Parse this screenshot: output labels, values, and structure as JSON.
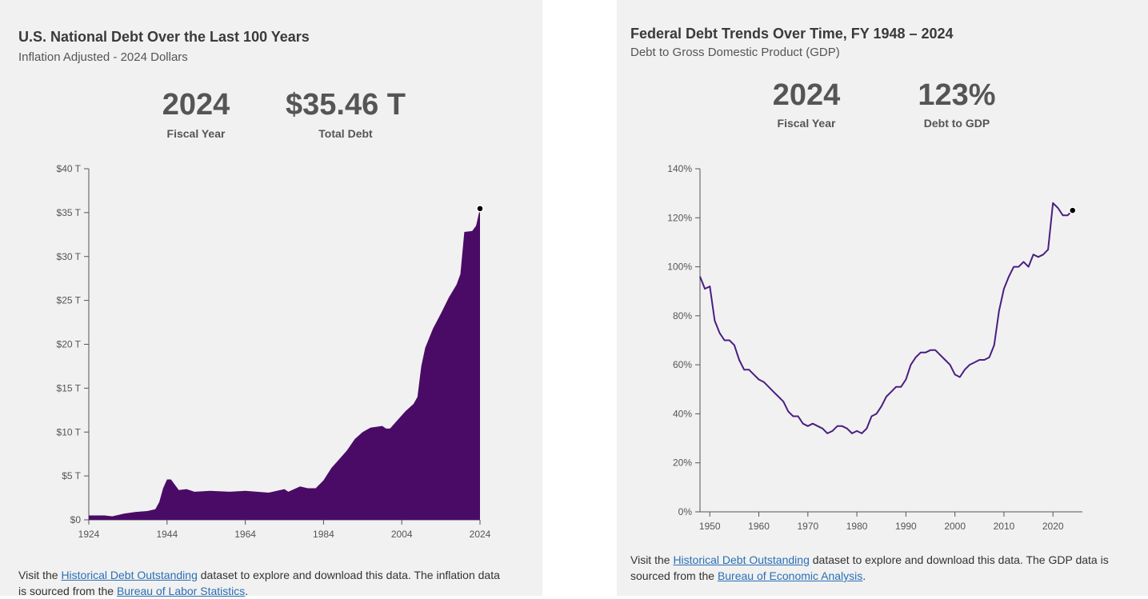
{
  "left": {
    "title": "U.S. National Debt Over the Last 100 Years",
    "subtitle": "Inflation Adjusted - 2024 Dollars",
    "stats": [
      {
        "value": "2024",
        "label": "Fiscal Year"
      },
      {
        "value": "$35.46 T",
        "label": "Total Debt"
      }
    ],
    "footnote": {
      "pre": "Visit the ",
      "link1": "Historical Debt Outstanding",
      "mid": " dataset to explore and download this data. The inflation data is sourced from the ",
      "link2": "Bureau of Labor Statistics",
      "post": "."
    }
  },
  "right": {
    "title": "Federal Debt Trends Over Time, FY 1948 – 2024",
    "subtitle": "Debt to Gross Domestic Product (GDP)",
    "stats": [
      {
        "value": "2024",
        "label": "Fiscal Year"
      },
      {
        "value": "123%",
        "label": "Debt to GDP"
      }
    ],
    "footnote": {
      "pre": "Visit the ",
      "link1": "Historical Debt Outstanding",
      "mid": " dataset to explore and download this data. The GDP data is sourced from the ",
      "link2": "Bureau of Economic Analysis",
      "post": "."
    }
  },
  "chart_data": [
    {
      "type": "area",
      "title": "U.S. National Debt Over the Last 100 Years",
      "subtitle": "Inflation Adjusted - 2024 Dollars",
      "color": "#4a0b66",
      "xlim": [
        1924,
        2024
      ],
      "ylim": [
        0,
        40
      ],
      "x_ticks": [
        "1924",
        "1944",
        "1964",
        "1984",
        "2004",
        "2024"
      ],
      "x_tick_values": [
        1924,
        1944,
        1964,
        1984,
        2004,
        2024
      ],
      "y_ticks": [
        "$0",
        "$5 T",
        "$10 T",
        "$15 T",
        "$20 T",
        "$25 T",
        "$30 T",
        "$35 T",
        "$40 T"
      ],
      "y_tick_values": [
        0,
        5,
        10,
        15,
        20,
        25,
        30,
        35,
        40
      ],
      "highlight": {
        "x": 2024,
        "y": 35.46
      },
      "points": [
        [
          1924,
          0.5
        ],
        [
          1928,
          0.5
        ],
        [
          1930,
          0.4
        ],
        [
          1933,
          0.7
        ],
        [
          1936,
          0.9
        ],
        [
          1939,
          1.0
        ],
        [
          1941,
          1.2
        ],
        [
          1942,
          2.0
        ],
        [
          1943,
          3.6
        ],
        [
          1944,
          4.6
        ],
        [
          1945,
          4.6
        ],
        [
          1946,
          4.0
        ],
        [
          1947,
          3.4
        ],
        [
          1949,
          3.5
        ],
        [
          1951,
          3.2
        ],
        [
          1955,
          3.3
        ],
        [
          1960,
          3.2
        ],
        [
          1964,
          3.3
        ],
        [
          1970,
          3.1
        ],
        [
          1974,
          3.5
        ],
        [
          1975,
          3.2
        ],
        [
          1978,
          3.8
        ],
        [
          1980,
          3.6
        ],
        [
          1982,
          3.6
        ],
        [
          1984,
          4.5
        ],
        [
          1986,
          5.9
        ],
        [
          1988,
          6.9
        ],
        [
          1990,
          7.9
        ],
        [
          1992,
          9.2
        ],
        [
          1994,
          10.0
        ],
        [
          1996,
          10.5
        ],
        [
          1999,
          10.7
        ],
        [
          2000,
          10.4
        ],
        [
          2001,
          10.4
        ],
        [
          2003,
          11.4
        ],
        [
          2005,
          12.4
        ],
        [
          2007,
          13.2
        ],
        [
          2008,
          14.0
        ],
        [
          2009,
          17.5
        ],
        [
          2010,
          19.6
        ],
        [
          2012,
          21.8
        ],
        [
          2014,
          23.5
        ],
        [
          2016,
          25.3
        ],
        [
          2018,
          26.8
        ],
        [
          2019,
          28.0
        ],
        [
          2020,
          32.8
        ],
        [
          2022,
          32.9
        ],
        [
          2023,
          33.5
        ],
        [
          2024,
          35.46
        ]
      ]
    },
    {
      "type": "line",
      "title": "Federal Debt Trends Over Time, FY 1948 – 2024",
      "subtitle": "Debt to Gross Domestic Product (GDP)",
      "color": "#4a1e82",
      "xlim": [
        1948,
        2026
      ],
      "ylim": [
        0,
        140
      ],
      "x_ticks": [
        "1950",
        "1960",
        "1970",
        "1980",
        "1990",
        "2000",
        "2010",
        "2020"
      ],
      "x_tick_values": [
        1950,
        1960,
        1970,
        1980,
        1990,
        2000,
        2010,
        2020
      ],
      "y_ticks": [
        "0%",
        "20%",
        "40%",
        "60%",
        "80%",
        "100%",
        "120%",
        "140%"
      ],
      "y_tick_values": [
        0,
        20,
        40,
        60,
        80,
        100,
        120,
        140
      ],
      "highlight": {
        "x": 2024,
        "y": 123
      },
      "points": [
        [
          1948,
          96
        ],
        [
          1949,
          91
        ],
        [
          1950,
          92
        ],
        [
          1951,
          78
        ],
        [
          1952,
          73
        ],
        [
          1953,
          70
        ],
        [
          1954,
          70
        ],
        [
          1955,
          68
        ],
        [
          1956,
          62
        ],
        [
          1957,
          58
        ],
        [
          1958,
          58
        ],
        [
          1959,
          56
        ],
        [
          1960,
          54
        ],
        [
          1961,
          53
        ],
        [
          1962,
          51
        ],
        [
          1963,
          49
        ],
        [
          1964,
          47
        ],
        [
          1965,
          45
        ],
        [
          1966,
          41
        ],
        [
          1967,
          39
        ],
        [
          1968,
          39
        ],
        [
          1969,
          36
        ],
        [
          1970,
          35
        ],
        [
          1971,
          36
        ],
        [
          1972,
          35
        ],
        [
          1973,
          34
        ],
        [
          1974,
          32
        ],
        [
          1975,
          33
        ],
        [
          1976,
          35
        ],
        [
          1977,
          35
        ],
        [
          1978,
          34
        ],
        [
          1979,
          32
        ],
        [
          1980,
          33
        ],
        [
          1981,
          32
        ],
        [
          1982,
          34
        ],
        [
          1983,
          39
        ],
        [
          1984,
          40
        ],
        [
          1985,
          43
        ],
        [
          1986,
          47
        ],
        [
          1987,
          49
        ],
        [
          1988,
          51
        ],
        [
          1989,
          51
        ],
        [
          1990,
          54
        ],
        [
          1991,
          60
        ],
        [
          1992,
          63
        ],
        [
          1993,
          65
        ],
        [
          1994,
          65
        ],
        [
          1995,
          66
        ],
        [
          1996,
          66
        ],
        [
          1997,
          64
        ],
        [
          1998,
          62
        ],
        [
          1999,
          60
        ],
        [
          2000,
          56
        ],
        [
          2001,
          55
        ],
        [
          2002,
          58
        ],
        [
          2003,
          60
        ],
        [
          2004,
          61
        ],
        [
          2005,
          62
        ],
        [
          2006,
          62
        ],
        [
          2007,
          63
        ],
        [
          2008,
          68
        ],
        [
          2009,
          82
        ],
        [
          2010,
          91
        ],
        [
          2011,
          96
        ],
        [
          2012,
          100
        ],
        [
          2013,
          100
        ],
        [
          2014,
          102
        ],
        [
          2015,
          100
        ],
        [
          2016,
          105
        ],
        [
          2017,
          104
        ],
        [
          2018,
          105
        ],
        [
          2019,
          107
        ],
        [
          2020,
          126
        ],
        [
          2021,
          124
        ],
        [
          2022,
          121
        ],
        [
          2023,
          121
        ],
        [
          2024,
          123
        ]
      ]
    }
  ]
}
